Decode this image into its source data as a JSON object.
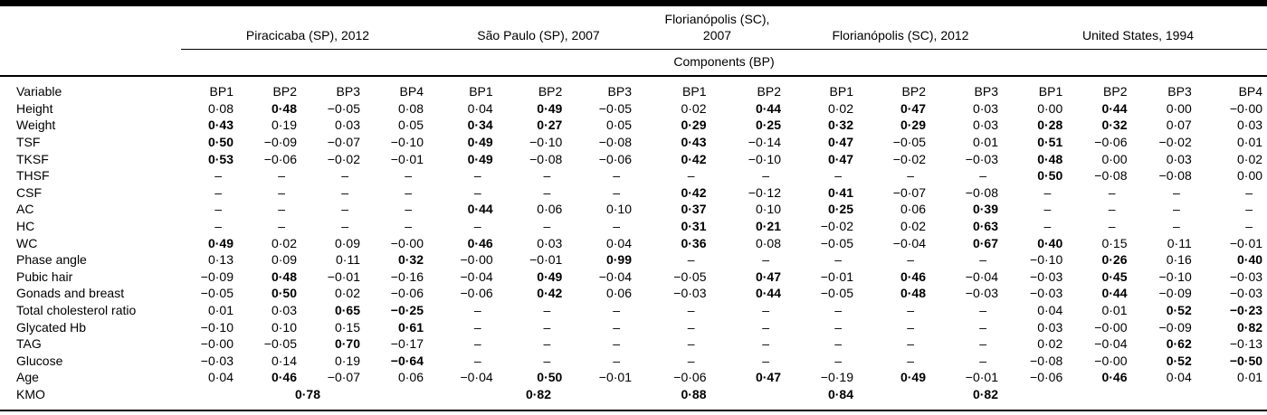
{
  "table": {
    "components_label": "Components (BP)",
    "variable_header": "Variable",
    "groups": [
      {
        "label": "Piracicaba (SP), 2012",
        "columns": [
          "BP1",
          "BP2",
          "BP3",
          "BP4"
        ]
      },
      {
        "label": "São Paulo (SP), 2007",
        "columns": [
          "BP1",
          "BP2",
          "BP3"
        ]
      },
      {
        "label": "Florianópolis (SC), 2007",
        "columns": [
          "BP1",
          "BP2"
        ]
      },
      {
        "label": "Florianópolis (SC), 2012",
        "columns": [
          "BP1",
          "BP2",
          "BP3"
        ]
      },
      {
        "label": "United States, 1994",
        "columns": [
          "BP1",
          "BP2",
          "BP3",
          "BP4"
        ]
      }
    ],
    "rows": [
      {
        "label": "Height",
        "values": [
          "0·08",
          "0·48",
          "−0·05",
          "0·08",
          "0·04",
          "0·49",
          "−0·05",
          "0·02",
          "0·44",
          "0·02",
          "0·47",
          "0·03",
          "0·00",
          "0·44",
          "0·00",
          "−0·00"
        ],
        "bold": [
          0,
          1,
          0,
          0,
          0,
          1,
          0,
          0,
          1,
          0,
          1,
          0,
          0,
          1,
          0,
          0
        ]
      },
      {
        "label": "Weight",
        "values": [
          "0·43",
          "0·19",
          "0·03",
          "0·05",
          "0·34",
          "0·27",
          "0·05",
          "0·29",
          "0·25",
          "0·32",
          "0·29",
          "0·03",
          "0·28",
          "0·32",
          "0·07",
          "0·03"
        ],
        "bold": [
          1,
          0,
          0,
          0,
          1,
          1,
          0,
          1,
          1,
          1,
          1,
          0,
          1,
          1,
          0,
          0
        ]
      },
      {
        "label": "TSF",
        "values": [
          "0·50",
          "−0·09",
          "−0·07",
          "−0·10",
          "0·49",
          "−0·10",
          "−0·08",
          "0·43",
          "−0·14",
          "0·47",
          "−0·05",
          "0·01",
          "0·51",
          "−0·06",
          "−0·02",
          "0·01"
        ],
        "bold": [
          1,
          0,
          0,
          0,
          1,
          0,
          0,
          1,
          0,
          1,
          0,
          0,
          1,
          0,
          0,
          0
        ]
      },
      {
        "label": "TKSF",
        "values": [
          "0·53",
          "−0·06",
          "−0·02",
          "−0·01",
          "0·49",
          "−0·08",
          "−0·06",
          "0·42",
          "−0·10",
          "0·47",
          "−0·02",
          "−0·03",
          "0·48",
          "0·00",
          "0·03",
          "0·02"
        ],
        "bold": [
          1,
          0,
          0,
          0,
          1,
          0,
          0,
          1,
          0,
          1,
          0,
          0,
          1,
          0,
          0,
          0
        ]
      },
      {
        "label": "THSF",
        "values": [
          "–",
          "–",
          "–",
          "–",
          "–",
          "–",
          "–",
          "–",
          "–",
          "–",
          "–",
          "–",
          "0·50",
          "−0·08",
          "−0·08",
          "0·00"
        ],
        "bold": [
          0,
          0,
          0,
          0,
          0,
          0,
          0,
          0,
          0,
          0,
          0,
          0,
          1,
          0,
          0,
          0
        ]
      },
      {
        "label": "CSF",
        "values": [
          "–",
          "–",
          "–",
          "–",
          "–",
          "–",
          "–",
          "0·42",
          "−0·12",
          "0·41",
          "−0·07",
          "−0·08",
          "–",
          "–",
          "–",
          "–"
        ],
        "bold": [
          0,
          0,
          0,
          0,
          0,
          0,
          0,
          1,
          0,
          1,
          0,
          0,
          0,
          0,
          0,
          0
        ]
      },
      {
        "label": "AC",
        "values": [
          "–",
          "–",
          "–",
          "–",
          "0·44",
          "0·06",
          "0·10",
          "0·37",
          "0·10",
          "0·25",
          "0·06",
          "0·39",
          "–",
          "–",
          "–",
          "–"
        ],
        "bold": [
          0,
          0,
          0,
          0,
          1,
          0,
          0,
          1,
          0,
          1,
          0,
          1,
          0,
          0,
          0,
          0
        ]
      },
      {
        "label": "HC",
        "values": [
          "–",
          "–",
          "–",
          "–",
          "–",
          "–",
          "–",
          "0·31",
          "0·21",
          "−0·02",
          "0·02",
          "0·63",
          "–",
          "–",
          "–",
          "–"
        ],
        "bold": [
          0,
          0,
          0,
          0,
          0,
          0,
          0,
          1,
          1,
          0,
          0,
          1,
          0,
          0,
          0,
          0
        ]
      },
      {
        "label": "WC",
        "values": [
          "0·49",
          "0·02",
          "0·09",
          "−0·00",
          "0·46",
          "0·03",
          "0·04",
          "0·36",
          "0·08",
          "−0·05",
          "−0·04",
          "0·67",
          "0·40",
          "0·15",
          "0·11",
          "−0·01"
        ],
        "bold": [
          1,
          0,
          0,
          0,
          1,
          0,
          0,
          1,
          0,
          0,
          0,
          1,
          1,
          0,
          0,
          0
        ]
      },
      {
        "label": "Phase angle",
        "values": [
          "0·13",
          "0·09",
          "0·11",
          "0·32",
          "−0·00",
          "−0·01",
          "0·99",
          "–",
          "–",
          "–",
          "–",
          "–",
          "−0·10",
          "0·26",
          "0·16",
          "0·40"
        ],
        "bold": [
          0,
          0,
          0,
          1,
          0,
          0,
          1,
          0,
          0,
          0,
          0,
          0,
          0,
          1,
          0,
          1
        ]
      },
      {
        "label": "Pubic hair",
        "values": [
          "−0·09",
          "0·48",
          "−0·01",
          "−0·16",
          "−0·04",
          "0·49",
          "−0·04",
          "−0·05",
          "0·47",
          "−0·01",
          "0·46",
          "−0·04",
          "−0·03",
          "0·45",
          "−0·10",
          "−0·03"
        ],
        "bold": [
          0,
          1,
          0,
          0,
          0,
          1,
          0,
          0,
          1,
          0,
          1,
          0,
          0,
          1,
          0,
          0
        ]
      },
      {
        "label": "Gonads and breast",
        "values": [
          "−0·05",
          "0·50",
          "0·02",
          "−0·06",
          "−0·06",
          "0·42",
          "0·06",
          "−0·03",
          "0·44",
          "−0·05",
          "0·48",
          "−0·03",
          "−0·03",
          "0·44",
          "−0·09",
          "−0·03"
        ],
        "bold": [
          0,
          1,
          0,
          0,
          0,
          1,
          0,
          0,
          1,
          0,
          1,
          0,
          0,
          1,
          0,
          0
        ]
      },
      {
        "label": "Total cholesterol ratio",
        "values": [
          "0·01",
          "0·03",
          "0·65",
          "−0·25",
          "–",
          "–",
          "–",
          "–",
          "–",
          "–",
          "–",
          "–",
          "0·04",
          "0·01",
          "0·52",
          "−0·23"
        ],
        "bold": [
          0,
          0,
          1,
          1,
          0,
          0,
          0,
          0,
          0,
          0,
          0,
          0,
          0,
          0,
          1,
          1
        ]
      },
      {
        "label": "Glycated Hb",
        "values": [
          "−0·10",
          "0·10",
          "0·15",
          "0·61",
          "–",
          "–",
          "–",
          "–",
          "–",
          "–",
          "–",
          "–",
          "0·03",
          "−0·00",
          "−0·09",
          "0·82"
        ],
        "bold": [
          0,
          0,
          0,
          1,
          0,
          0,
          0,
          0,
          0,
          0,
          0,
          0,
          0,
          0,
          0,
          1
        ]
      },
      {
        "label": "TAG",
        "values": [
          "−0·00",
          "−0·05",
          "0·70",
          "−0·17",
          "–",
          "–",
          "–",
          "–",
          "–",
          "–",
          "–",
          "–",
          "0·02",
          "−0·04",
          "0·62",
          "−0·13"
        ],
        "bold": [
          0,
          0,
          1,
          0,
          0,
          0,
          0,
          0,
          0,
          0,
          0,
          0,
          0,
          0,
          1,
          0
        ]
      },
      {
        "label": "Glucose",
        "values": [
          "−0·03",
          "0·14",
          "0·19",
          "−0·64",
          "–",
          "–",
          "–",
          "–",
          "–",
          "–",
          "–",
          "–",
          "−0·08",
          "−0·00",
          "0·52",
          "−0·50"
        ],
        "bold": [
          0,
          0,
          0,
          1,
          0,
          0,
          0,
          0,
          0,
          0,
          0,
          0,
          0,
          0,
          1,
          1
        ]
      },
      {
        "label": "Age",
        "values": [
          "0·04",
          "0·46",
          "−0·07",
          "0·06",
          "−0·04",
          "0·50",
          "−0·01",
          "−0·06",
          "0·47",
          "−0·19",
          "0·49",
          "−0·01",
          "−0·06",
          "0·46",
          "0·04",
          "0·01"
        ],
        "bold": [
          0,
          1,
          0,
          0,
          0,
          1,
          0,
          0,
          1,
          0,
          1,
          0,
          0,
          1,
          0,
          0
        ]
      }
    ],
    "kmo_row": {
      "label": "KMO",
      "cells": [
        {
          "span": 4,
          "align": "center",
          "value": "0·78"
        },
        {
          "span": 3,
          "align": "center",
          "value": "0·82"
        },
        {
          "span": 1,
          "align": "right",
          "value": "0·88"
        },
        {
          "span": 1,
          "align": "right",
          "value": ""
        },
        {
          "span": 1,
          "align": "right",
          "value": "0·84"
        },
        {
          "span": 1,
          "align": "right",
          "value": ""
        },
        {
          "span": 1,
          "align": "right",
          "value": "0·82"
        },
        {
          "span": 4,
          "align": "right",
          "value": ""
        }
      ]
    },
    "kmo_by_study": {
      "Piracicaba (SP), 2012": "0·78",
      "São Paulo (SP), 2007": "0·82",
      "Florianópolis (SC), 2007": "0·88",
      "Florianópolis (SC), 2012": "0·84",
      "United States, 1994": "0·82"
    }
  }
}
